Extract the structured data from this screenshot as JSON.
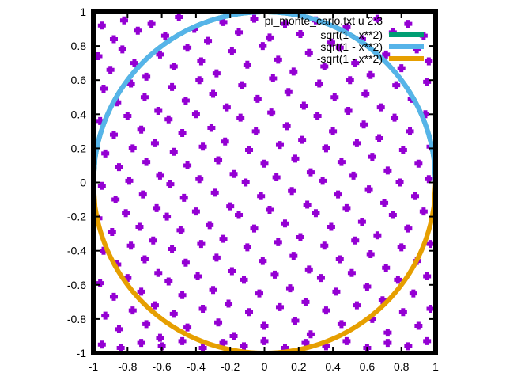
{
  "chart_data": {
    "type": "scatter",
    "xlim": [
      -1,
      1
    ],
    "ylim": [
      -1,
      1
    ],
    "x_ticks": [
      "-1",
      "-0.8",
      "-0.6",
      "-0.4",
      "-0.2",
      "0",
      "0.2",
      "0.4",
      "0.6",
      "0.8",
      "1"
    ],
    "y_ticks": [
      "1",
      "0.8",
      "0.6",
      "0.4",
      "0.2",
      "0",
      "-0.2",
      "-0.4",
      "-0.6",
      "-0.8",
      "-1"
    ],
    "grid": false,
    "legend_position": "top-right",
    "series": [
      {
        "name": "pi_monte_carlo.txt u 2:3",
        "kind": "points",
        "color": "#9400d3",
        "marker": "plus",
        "points": [
          [
            -0.95,
            0.92
          ],
          [
            -0.88,
            0.84
          ],
          [
            -0.82,
            0.95
          ],
          [
            -0.74,
            0.89
          ],
          [
            -0.66,
            0.93
          ],
          [
            -0.58,
            0.86
          ],
          [
            -0.5,
            0.97
          ],
          [
            -0.41,
            0.9
          ],
          [
            -0.33,
            0.83
          ],
          [
            -0.24,
            0.94
          ],
          [
            -0.15,
            0.88
          ],
          [
            -0.06,
            0.96
          ],
          [
            0.03,
            0.85
          ],
          [
            0.12,
            0.93
          ],
          [
            0.21,
            0.87
          ],
          [
            0.3,
            0.95
          ],
          [
            0.39,
            0.82
          ],
          [
            0.48,
            0.91
          ],
          [
            0.57,
            0.84
          ],
          [
            0.66,
            0.96
          ],
          [
            0.75,
            0.88
          ],
          [
            0.84,
            0.93
          ],
          [
            0.93,
            0.86
          ],
          [
            -0.97,
            0.74
          ],
          [
            -0.9,
            0.66
          ],
          [
            -0.83,
            0.78
          ],
          [
            -0.76,
            0.7
          ],
          [
            -0.69,
            0.62
          ],
          [
            -0.61,
            0.75
          ],
          [
            -0.53,
            0.68
          ],
          [
            -0.45,
            0.79
          ],
          [
            -0.37,
            0.71
          ],
          [
            -0.28,
            0.64
          ],
          [
            -0.19,
            0.77
          ],
          [
            -0.1,
            0.69
          ],
          [
            -0.01,
            0.8
          ],
          [
            0.08,
            0.72
          ],
          [
            0.17,
            0.65
          ],
          [
            0.26,
            0.76
          ],
          [
            0.35,
            0.68
          ],
          [
            0.44,
            0.79
          ],
          [
            0.53,
            0.7
          ],
          [
            0.62,
            0.63
          ],
          [
            0.71,
            0.75
          ],
          [
            0.8,
            0.67
          ],
          [
            0.89,
            0.78
          ],
          [
            0.96,
            0.71
          ],
          [
            -0.94,
            0.55
          ],
          [
            -0.86,
            0.47
          ],
          [
            -0.78,
            0.58
          ],
          [
            -0.7,
            0.5
          ],
          [
            -0.62,
            0.42
          ],
          [
            -0.54,
            0.56
          ],
          [
            -0.46,
            0.48
          ],
          [
            -0.38,
            0.6
          ],
          [
            -0.3,
            0.52
          ],
          [
            -0.22,
            0.44
          ],
          [
            -0.13,
            0.57
          ],
          [
            -0.04,
            0.49
          ],
          [
            0.05,
            0.61
          ],
          [
            0.14,
            0.53
          ],
          [
            0.23,
            0.45
          ],
          [
            0.32,
            0.58
          ],
          [
            0.41,
            0.5
          ],
          [
            0.5,
            0.6
          ],
          [
            0.59,
            0.52
          ],
          [
            0.68,
            0.44
          ],
          [
            0.77,
            0.57
          ],
          [
            0.86,
            0.49
          ],
          [
            0.95,
            0.59
          ],
          [
            -0.96,
            0.36
          ],
          [
            -0.88,
            0.28
          ],
          [
            -0.8,
            0.39
          ],
          [
            -0.72,
            0.31
          ],
          [
            -0.64,
            0.23
          ],
          [
            -0.56,
            0.37
          ],
          [
            -0.48,
            0.29
          ],
          [
            -0.4,
            0.4
          ],
          [
            -0.31,
            0.32
          ],
          [
            -0.23,
            0.24
          ],
          [
            -0.14,
            0.38
          ],
          [
            -0.05,
            0.3
          ],
          [
            0.04,
            0.41
          ],
          [
            0.13,
            0.33
          ],
          [
            0.22,
            0.25
          ],
          [
            0.31,
            0.39
          ],
          [
            0.4,
            0.3
          ],
          [
            0.49,
            0.42
          ],
          [
            0.58,
            0.34
          ],
          [
            0.67,
            0.26
          ],
          [
            0.76,
            0.38
          ],
          [
            0.85,
            0.3
          ],
          [
            0.94,
            0.4
          ],
          [
            -0.93,
            0.17
          ],
          [
            -0.85,
            0.09
          ],
          [
            -0.77,
            0.2
          ],
          [
            -0.69,
            0.12
          ],
          [
            -0.61,
            0.04
          ],
          [
            -0.53,
            0.18
          ],
          [
            -0.45,
            0.1
          ],
          [
            -0.36,
            0.21
          ],
          [
            -0.27,
            0.13
          ],
          [
            -0.18,
            0.05
          ],
          [
            -0.09,
            0.19
          ],
          [
            0.0,
            0.11
          ],
          [
            0.09,
            0.22
          ],
          [
            0.18,
            0.14
          ],
          [
            0.27,
            0.06
          ],
          [
            0.36,
            0.2
          ],
          [
            0.45,
            0.12
          ],
          [
            0.54,
            0.23
          ],
          [
            0.63,
            0.15
          ],
          [
            0.72,
            0.07
          ],
          [
            0.81,
            0.19
          ],
          [
            0.9,
            0.11
          ],
          [
            0.97,
            0.21
          ],
          [
            -0.95,
            -0.02
          ],
          [
            -0.87,
            -0.1
          ],
          [
            -0.79,
            0.01
          ],
          [
            -0.71,
            -0.07
          ],
          [
            -0.63,
            -0.15
          ],
          [
            -0.55,
            -0.01
          ],
          [
            -0.47,
            -0.09
          ],
          [
            -0.38,
            0.02
          ],
          [
            -0.29,
            -0.06
          ],
          [
            -0.2,
            -0.14
          ],
          [
            -0.11,
            0.0
          ],
          [
            -0.02,
            -0.08
          ],
          [
            0.07,
            0.03
          ],
          [
            0.16,
            -0.05
          ],
          [
            0.25,
            -0.13
          ],
          [
            0.34,
            0.01
          ],
          [
            0.43,
            -0.07
          ],
          [
            0.52,
            0.04
          ],
          [
            0.61,
            -0.04
          ],
          [
            0.7,
            -0.12
          ],
          [
            0.79,
            0.0
          ],
          [
            0.88,
            -0.08
          ],
          [
            0.96,
            0.02
          ],
          [
            -0.97,
            -0.21
          ],
          [
            -0.89,
            -0.29
          ],
          [
            -0.81,
            -0.18
          ],
          [
            -0.73,
            -0.26
          ],
          [
            -0.65,
            -0.34
          ],
          [
            -0.57,
            -0.2
          ],
          [
            -0.49,
            -0.28
          ],
          [
            -0.4,
            -0.17
          ],
          [
            -0.32,
            -0.25
          ],
          [
            -0.24,
            -0.33
          ],
          [
            -0.15,
            -0.19
          ],
          [
            -0.06,
            -0.27
          ],
          [
            0.03,
            -0.16
          ],
          [
            0.12,
            -0.24
          ],
          [
            0.21,
            -0.32
          ],
          [
            0.3,
            -0.18
          ],
          [
            0.39,
            -0.26
          ],
          [
            0.48,
            -0.15
          ],
          [
            0.57,
            -0.23
          ],
          [
            0.66,
            -0.31
          ],
          [
            0.75,
            -0.19
          ],
          [
            0.84,
            -0.27
          ],
          [
            0.93,
            -0.17
          ],
          [
            -0.94,
            -0.4
          ],
          [
            -0.86,
            -0.48
          ],
          [
            -0.78,
            -0.37
          ],
          [
            -0.7,
            -0.45
          ],
          [
            -0.62,
            -0.53
          ],
          [
            -0.54,
            -0.39
          ],
          [
            -0.46,
            -0.47
          ],
          [
            -0.37,
            -0.36
          ],
          [
            -0.28,
            -0.44
          ],
          [
            -0.19,
            -0.52
          ],
          [
            -0.1,
            -0.38
          ],
          [
            -0.01,
            -0.46
          ],
          [
            0.08,
            -0.35
          ],
          [
            0.17,
            -0.43
          ],
          [
            0.26,
            -0.51
          ],
          [
            0.35,
            -0.37
          ],
          [
            0.44,
            -0.45
          ],
          [
            0.53,
            -0.34
          ],
          [
            0.62,
            -0.42
          ],
          [
            0.71,
            -0.5
          ],
          [
            0.8,
            -0.38
          ],
          [
            0.89,
            -0.46
          ],
          [
            0.97,
            -0.36
          ],
          [
            -0.96,
            -0.59
          ],
          [
            -0.88,
            -0.67
          ],
          [
            -0.8,
            -0.56
          ],
          [
            -0.72,
            -0.64
          ],
          [
            -0.64,
            -0.72
          ],
          [
            -0.56,
            -0.58
          ],
          [
            -0.48,
            -0.66
          ],
          [
            -0.39,
            -0.55
          ],
          [
            -0.3,
            -0.63
          ],
          [
            -0.21,
            -0.71
          ],
          [
            -0.12,
            -0.57
          ],
          [
            -0.03,
            -0.65
          ],
          [
            0.06,
            -0.54
          ],
          [
            0.15,
            -0.62
          ],
          [
            0.24,
            -0.7
          ],
          [
            0.33,
            -0.56
          ],
          [
            0.42,
            -0.64
          ],
          [
            0.51,
            -0.53
          ],
          [
            0.6,
            -0.61
          ],
          [
            0.69,
            -0.69
          ],
          [
            0.78,
            -0.57
          ],
          [
            0.87,
            -0.65
          ],
          [
            0.95,
            -0.55
          ],
          [
            -0.93,
            -0.78
          ],
          [
            -0.85,
            -0.86
          ],
          [
            -0.77,
            -0.75
          ],
          [
            -0.69,
            -0.83
          ],
          [
            -0.61,
            -0.91
          ],
          [
            -0.53,
            -0.77
          ],
          [
            -0.45,
            -0.85
          ],
          [
            -0.36,
            -0.74
          ],
          [
            -0.27,
            -0.82
          ],
          [
            -0.18,
            -0.9
          ],
          [
            -0.09,
            -0.76
          ],
          [
            0.0,
            -0.84
          ],
          [
            0.09,
            -0.73
          ],
          [
            0.18,
            -0.81
          ],
          [
            0.27,
            -0.89
          ],
          [
            0.36,
            -0.75
          ],
          [
            0.45,
            -0.83
          ],
          [
            0.54,
            -0.72
          ],
          [
            0.63,
            -0.8
          ],
          [
            0.72,
            -0.88
          ],
          [
            0.81,
            -0.76
          ],
          [
            0.9,
            -0.84
          ],
          [
            0.97,
            -0.74
          ],
          [
            -0.95,
            -0.95
          ],
          [
            -0.84,
            -0.97
          ],
          [
            -0.72,
            -0.94
          ],
          [
            -0.6,
            -0.96
          ],
          [
            -0.48,
            -0.93
          ],
          [
            -0.36,
            -0.97
          ],
          [
            -0.24,
            -0.94
          ],
          [
            -0.12,
            -0.96
          ],
          [
            0.0,
            -0.93
          ],
          [
            0.12,
            -0.97
          ],
          [
            0.24,
            -0.94
          ],
          [
            0.36,
            -0.96
          ],
          [
            0.48,
            -0.93
          ],
          [
            0.6,
            -0.97
          ],
          [
            0.72,
            -0.94
          ],
          [
            0.84,
            -0.96
          ],
          [
            0.95,
            -0.93
          ]
        ]
      },
      {
        "name": "sqrt(1 - x**2)",
        "kind": "curve",
        "color": "#009e73",
        "half": "upper"
      },
      {
        "name": "sqrt(1 - x**2)",
        "kind": "curve",
        "color": "#56b4e9",
        "half": "upper"
      },
      {
        "name": "-sqrt(1 - x**2)",
        "kind": "curve",
        "color": "#e69f00",
        "half": "lower"
      }
    ]
  }
}
